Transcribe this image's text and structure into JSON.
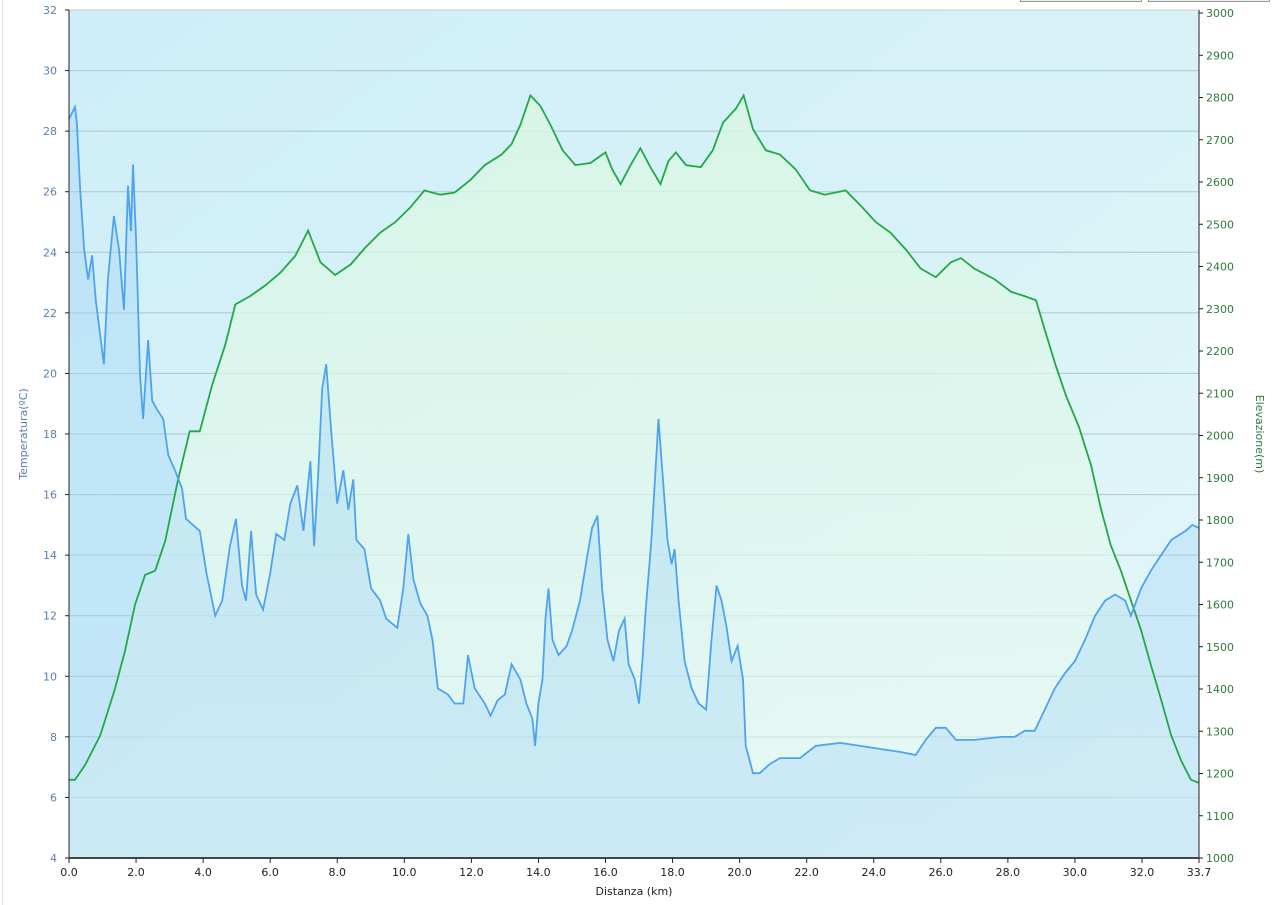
{
  "chart_data": {
    "type": "line",
    "title": "",
    "xlabel": "Distanza  (km)",
    "ylabel_left": "Temperatura(ºC)",
    "ylabel_right": "Elevazione(m)",
    "xlim": [
      0,
      33.7
    ],
    "ylim_left": [
      4,
      32
    ],
    "ylim_right": [
      1000,
      3000
    ],
    "x_ticks": [
      "0.0",
      "2.0",
      "4.0",
      "6.0",
      "8.0",
      "10.0",
      "12.0",
      "14.0",
      "16.0",
      "18.0",
      "20.0",
      "22.0",
      "24.0",
      "26.0",
      "28.0",
      "30.0",
      "32.0",
      "33.7"
    ],
    "y_left_ticks": [
      4,
      6,
      8,
      10,
      12,
      14,
      16,
      18,
      20,
      22,
      24,
      26,
      28,
      30,
      32
    ],
    "y_right_ticks": [
      1000,
      1100,
      1200,
      1300,
      1400,
      1500,
      1600,
      1700,
      1800,
      1900,
      2000,
      2100,
      2200,
      2300,
      2400,
      2500,
      2600,
      2700,
      2800,
      2900,
      3000
    ],
    "grid": true,
    "colors": {
      "temperature": "#4fa3ee",
      "elevation": "#23a847"
    },
    "series": [
      {
        "name": "Temperatura",
        "axis": "left",
        "points": [
          [
            0,
            28.4
          ],
          [
            0.18,
            28.8
          ],
          [
            0.24,
            28.2
          ],
          [
            0.33,
            26.1
          ],
          [
            0.45,
            24.1
          ],
          [
            0.57,
            23.1
          ],
          [
            0.69,
            23.9
          ],
          [
            0.8,
            22.4
          ],
          [
            1.04,
            20.3
          ],
          [
            1.16,
            23.1
          ],
          [
            1.34,
            25.2
          ],
          [
            1.49,
            24.1
          ],
          [
            1.64,
            22.1
          ],
          [
            1.76,
            26.2
          ],
          [
            1.85,
            24.7
          ],
          [
            1.91,
            26.9
          ],
          [
            2.0,
            24.4
          ],
          [
            2.12,
            19.9
          ],
          [
            2.21,
            18.5
          ],
          [
            2.36,
            21.1
          ],
          [
            2.48,
            19.1
          ],
          [
            2.63,
            18.8
          ],
          [
            2.81,
            18.5
          ],
          [
            2.96,
            17.3
          ],
          [
            3.16,
            16.8
          ],
          [
            3.37,
            16.2
          ],
          [
            3.49,
            15.2
          ],
          [
            3.9,
            14.8
          ],
          [
            4.1,
            13.4
          ],
          [
            4.36,
            12.0
          ],
          [
            4.57,
            12.5
          ],
          [
            4.8,
            14.3
          ],
          [
            4.98,
            15.2
          ],
          [
            5.16,
            13.0
          ],
          [
            5.28,
            12.5
          ],
          [
            5.43,
            14.8
          ],
          [
            5.58,
            12.7
          ],
          [
            5.79,
            12.2
          ],
          [
            6.0,
            13.4
          ],
          [
            6.18,
            14.7
          ],
          [
            6.42,
            14.5
          ],
          [
            6.6,
            15.7
          ],
          [
            6.81,
            16.3
          ],
          [
            6.99,
            14.8
          ],
          [
            7.2,
            17.1
          ],
          [
            7.31,
            14.3
          ],
          [
            7.43,
            16.6
          ],
          [
            7.55,
            19.5
          ],
          [
            7.67,
            20.3
          ],
          [
            7.82,
            18.1
          ],
          [
            8.0,
            15.7
          ],
          [
            8.18,
            16.8
          ],
          [
            8.33,
            15.5
          ],
          [
            8.48,
            16.5
          ],
          [
            8.57,
            14.5
          ],
          [
            8.81,
            14.2
          ],
          [
            9.01,
            12.9
          ],
          [
            9.28,
            12.5
          ],
          [
            9.46,
            11.9
          ],
          [
            9.79,
            11.6
          ],
          [
            9.97,
            12.9
          ],
          [
            10.12,
            14.7
          ],
          [
            10.27,
            13.2
          ],
          [
            10.48,
            12.4
          ],
          [
            10.69,
            12.0
          ],
          [
            10.84,
            11.2
          ],
          [
            11.0,
            9.6
          ],
          [
            11.3,
            9.4
          ],
          [
            11.5,
            9.1
          ],
          [
            11.76,
            9.1
          ],
          [
            11.9,
            10.7
          ],
          [
            12.1,
            9.6
          ],
          [
            12.4,
            9.1
          ],
          [
            12.57,
            8.7
          ],
          [
            12.78,
            9.2
          ],
          [
            13.0,
            9.4
          ],
          [
            13.2,
            10.4
          ],
          [
            13.46,
            9.9
          ],
          [
            13.64,
            9.1
          ],
          [
            13.82,
            8.6
          ],
          [
            13.9,
            7.7
          ],
          [
            14.0,
            9.1
          ],
          [
            14.12,
            9.9
          ],
          [
            14.21,
            11.9
          ],
          [
            14.3,
            12.9
          ],
          [
            14.42,
            11.2
          ],
          [
            14.6,
            10.7
          ],
          [
            14.84,
            11.0
          ],
          [
            15.0,
            11.5
          ],
          [
            15.24,
            12.5
          ],
          [
            15.43,
            13.8
          ],
          [
            15.6,
            14.9
          ],
          [
            15.76,
            15.3
          ],
          [
            15.9,
            12.9
          ],
          [
            16.06,
            11.2
          ],
          [
            16.24,
            10.5
          ],
          [
            16.4,
            11.5
          ],
          [
            16.57,
            11.9
          ],
          [
            16.69,
            10.4
          ],
          [
            16.87,
            9.9
          ],
          [
            17.0,
            9.1
          ],
          [
            17.1,
            10.5
          ],
          [
            17.2,
            12.2
          ],
          [
            17.37,
            14.5
          ],
          [
            17.49,
            16.8
          ],
          [
            17.58,
            18.5
          ],
          [
            17.7,
            16.7
          ],
          [
            17.85,
            14.5
          ],
          [
            17.97,
            13.7
          ],
          [
            18.06,
            14.2
          ],
          [
            18.18,
            12.5
          ],
          [
            18.36,
            10.5
          ],
          [
            18.57,
            9.6
          ],
          [
            18.78,
            9.1
          ],
          [
            19.0,
            8.9
          ],
          [
            19.16,
            11.2
          ],
          [
            19.31,
            13.0
          ],
          [
            19.46,
            12.5
          ],
          [
            19.6,
            11.7
          ],
          [
            19.76,
            10.5
          ],
          [
            19.94,
            11.0
          ],
          [
            20.1,
            9.9
          ],
          [
            20.18,
            7.7
          ],
          [
            20.4,
            6.8
          ],
          [
            20.6,
            6.8
          ],
          [
            20.9,
            7.1
          ],
          [
            21.2,
            7.3
          ],
          [
            21.8,
            7.3
          ],
          [
            22.27,
            7.7
          ],
          [
            23.0,
            7.8
          ],
          [
            23.6,
            7.7
          ],
          [
            24.2,
            7.6
          ],
          [
            24.8,
            7.5
          ],
          [
            25.25,
            7.4
          ],
          [
            25.55,
            7.9
          ],
          [
            25.85,
            8.3
          ],
          [
            26.15,
            8.3
          ],
          [
            26.45,
            7.9
          ],
          [
            27.0,
            7.9
          ],
          [
            27.8,
            8.0
          ],
          [
            28.2,
            8.0
          ],
          [
            28.5,
            8.2
          ],
          [
            28.8,
            8.2
          ],
          [
            29.1,
            8.9
          ],
          [
            29.4,
            9.6
          ],
          [
            29.7,
            10.1
          ],
          [
            30.0,
            10.5
          ],
          [
            30.3,
            11.2
          ],
          [
            30.6,
            12.0
          ],
          [
            30.9,
            12.5
          ],
          [
            31.2,
            12.7
          ],
          [
            31.5,
            12.5
          ],
          [
            31.67,
            12.0
          ],
          [
            31.97,
            12.9
          ],
          [
            32.27,
            13.5
          ],
          [
            32.57,
            14.0
          ],
          [
            32.87,
            14.5
          ],
          [
            33.3,
            14.8
          ],
          [
            33.5,
            15.0
          ],
          [
            33.7,
            14.9
          ]
        ]
      },
      {
        "name": "Elevazione",
        "axis": "right",
        "points": [
          [
            0,
            1185
          ],
          [
            0.18,
            1185
          ],
          [
            0.48,
            1220
          ],
          [
            0.93,
            1290
          ],
          [
            1.37,
            1400
          ],
          [
            1.67,
            1490
          ],
          [
            1.97,
            1600
          ],
          [
            2.27,
            1670
          ],
          [
            2.57,
            1680
          ],
          [
            2.87,
            1750
          ],
          [
            3.25,
            1895
          ],
          [
            3.6,
            2010
          ],
          [
            3.9,
            2010
          ],
          [
            4.27,
            2120
          ],
          [
            4.66,
            2215
          ],
          [
            4.96,
            2310
          ],
          [
            5.4,
            2330
          ],
          [
            5.85,
            2355
          ],
          [
            6.3,
            2385
          ],
          [
            6.75,
            2425
          ],
          [
            7.13,
            2485
          ],
          [
            7.5,
            2410
          ],
          [
            7.94,
            2380
          ],
          [
            8.4,
            2405
          ],
          [
            8.84,
            2445
          ],
          [
            9.28,
            2480
          ],
          [
            9.73,
            2505
          ],
          [
            10.18,
            2540
          ],
          [
            10.6,
            2580
          ],
          [
            11.07,
            2570
          ],
          [
            11.5,
            2575
          ],
          [
            11.97,
            2605
          ],
          [
            12.4,
            2640
          ],
          [
            12.9,
            2665
          ],
          [
            13.2,
            2690
          ],
          [
            13.46,
            2735
          ],
          [
            13.76,
            2805
          ],
          [
            14.06,
            2780
          ],
          [
            14.36,
            2735
          ],
          [
            14.72,
            2675
          ],
          [
            15.1,
            2640
          ],
          [
            15.55,
            2645
          ],
          [
            16.0,
            2670
          ],
          [
            16.2,
            2630
          ],
          [
            16.45,
            2595
          ],
          [
            16.75,
            2640
          ],
          [
            17.04,
            2680
          ],
          [
            17.34,
            2635
          ],
          [
            17.64,
            2595
          ],
          [
            17.88,
            2650
          ],
          [
            18.1,
            2670
          ],
          [
            18.4,
            2640
          ],
          [
            18.84,
            2635
          ],
          [
            19.2,
            2675
          ],
          [
            19.5,
            2740
          ],
          [
            19.9,
            2775
          ],
          [
            20.12,
            2805
          ],
          [
            20.4,
            2725
          ],
          [
            20.78,
            2675
          ],
          [
            21.2,
            2665
          ],
          [
            21.67,
            2630
          ],
          [
            22.1,
            2580
          ],
          [
            22.54,
            2570
          ],
          [
            23.16,
            2580
          ],
          [
            23.6,
            2545
          ],
          [
            24.06,
            2505
          ],
          [
            24.5,
            2480
          ],
          [
            24.96,
            2440
          ],
          [
            25.4,
            2395
          ],
          [
            25.85,
            2375
          ],
          [
            26.3,
            2410
          ],
          [
            26.6,
            2420
          ],
          [
            27.0,
            2395
          ],
          [
            27.6,
            2370
          ],
          [
            28.1,
            2340
          ],
          [
            28.5,
            2330
          ],
          [
            28.84,
            2320
          ],
          [
            29.1,
            2250
          ],
          [
            29.43,
            2165
          ],
          [
            29.73,
            2095
          ],
          [
            30.12,
            2020
          ],
          [
            30.48,
            1930
          ],
          [
            30.78,
            1825
          ],
          [
            31.07,
            1740
          ],
          [
            31.37,
            1680
          ],
          [
            31.67,
            1610
          ],
          [
            31.97,
            1540
          ],
          [
            32.27,
            1455
          ],
          [
            32.57,
            1375
          ],
          [
            32.87,
            1290
          ],
          [
            33.17,
            1230
          ],
          [
            33.46,
            1185
          ],
          [
            33.7,
            1178
          ]
        ]
      }
    ]
  }
}
